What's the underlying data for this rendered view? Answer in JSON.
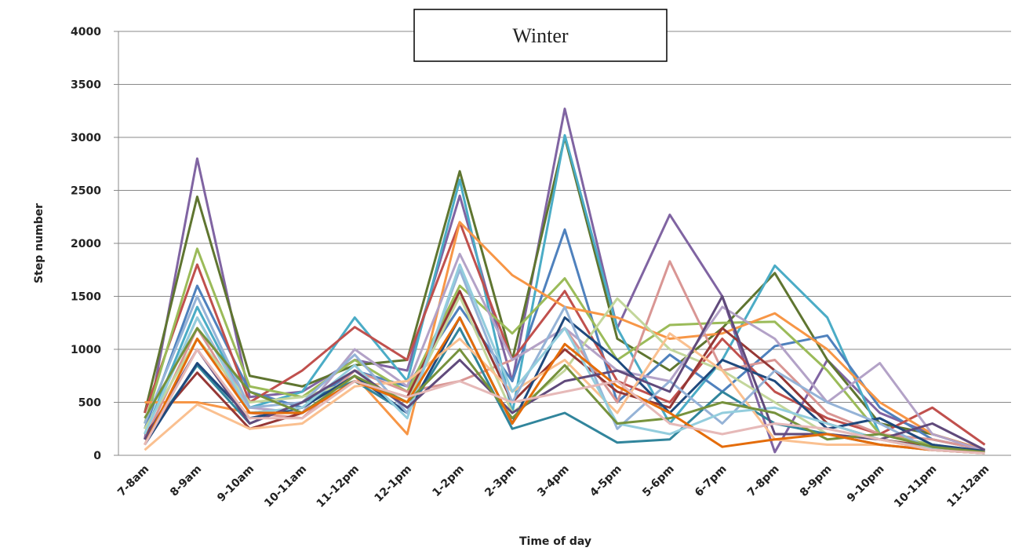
{
  "chart_data": {
    "type": "line",
    "title": "Winter",
    "x_label": "Time of day",
    "y_label": "Step number",
    "categories": [
      "7-8am",
      "8-9am",
      "9-10am",
      "10-11am",
      "11-12pm",
      "12-1pm",
      "1-2pm",
      "2-3pm",
      "3-4pm",
      "4-5pm",
      "5-6pm",
      "6-7pm",
      "7-8pm",
      "8-9pm",
      "9-10pm",
      "10-11pm",
      "11-12am"
    ],
    "ylim": [
      0,
      4000
    ],
    "yticks": [
      0,
      500,
      1000,
      1500,
      2000,
      2500,
      3000,
      3500,
      4000
    ],
    "grid": true,
    "series": [
      {
        "color": "#8064a2",
        "values": [
          150,
          2800,
          550,
          600,
          900,
          800,
          2450,
          700,
          3270,
          1200,
          2270,
          1500,
          30,
          900,
          400,
          200,
          50
        ]
      },
      {
        "color": "#5f7530",
        "values": [
          400,
          2440,
          750,
          650,
          850,
          900,
          2680,
          900,
          3000,
          1100,
          800,
          1200,
          1720,
          900,
          300,
          200,
          50
        ]
      },
      {
        "color": "#4bacc6",
        "values": [
          200,
          1400,
          450,
          600,
          1300,
          700,
          2600,
          400,
          3020,
          1200,
          300,
          900,
          1790,
          1300,
          200,
          100,
          30
        ]
      },
      {
        "color": "#4f81bd",
        "values": [
          250,
          1600,
          600,
          450,
          800,
          650,
          1400,
          700,
          2130,
          500,
          950,
          600,
          1030,
          1130,
          450,
          150,
          50
        ]
      },
      {
        "color": "#c0504d",
        "values": [
          400,
          1800,
          500,
          800,
          1210,
          900,
          2200,
          900,
          1550,
          700,
          500,
          1100,
          600,
          350,
          200,
          450,
          100
        ]
      },
      {
        "color": "#9bbb59",
        "values": [
          300,
          1950,
          650,
          550,
          900,
          600,
          1600,
          1150,
          1670,
          900,
          1230,
          1250,
          1260,
          800,
          200,
          100,
          30
        ]
      },
      {
        "color": "#f79646",
        "values": [
          500,
          500,
          400,
          450,
          750,
          200,
          2200,
          1700,
          1400,
          1300,
          1100,
          1150,
          1340,
          1000,
          500,
          200,
          50
        ]
      },
      {
        "color": "#d99694",
        "values": [
          150,
          1200,
          400,
          350,
          800,
          600,
          700,
          900,
          1200,
          500,
          1830,
          800,
          900,
          400,
          200,
          150,
          50
        ]
      },
      {
        "color": "#b3a2c7",
        "values": [
          200,
          1300,
          450,
          400,
          1000,
          650,
          1900,
          900,
          1200,
          800,
          700,
          1400,
          1100,
          500,
          870,
          200,
          40
        ]
      },
      {
        "color": "#c3d69b",
        "values": [
          250,
          1100,
          500,
          550,
          700,
          500,
          1500,
          400,
          800,
          1480,
          1000,
          800,
          500,
          200,
          150,
          50,
          20
        ]
      },
      {
        "color": "#31859c",
        "values": [
          150,
          850,
          300,
          500,
          700,
          400,
          1200,
          250,
          400,
          120,
          150,
          600,
          300,
          200,
          100,
          50,
          20
        ]
      },
      {
        "color": "#953735",
        "values": [
          200,
          780,
          250,
          400,
          700,
          550,
          1550,
          500,
          1000,
          600,
          450,
          1200,
          800,
          300,
          150,
          80,
          30
        ]
      },
      {
        "color": "#1f497d",
        "values": [
          100,
          870,
          350,
          450,
          750,
          400,
          1300,
          300,
          1300,
          900,
          400,
          900,
          700,
          250,
          350,
          100,
          40
        ]
      },
      {
        "color": "#fac090",
        "values": [
          50,
          480,
          250,
          300,
          650,
          700,
          1100,
          600,
          900,
          400,
          1150,
          800,
          150,
          100,
          100,
          50,
          20
        ]
      },
      {
        "color": "#95b3d7",
        "values": [
          300,
          1500,
          450,
          500,
          950,
          400,
          1750,
          500,
          1400,
          250,
          700,
          300,
          800,
          500,
          300,
          50,
          20
        ]
      },
      {
        "color": "#93cddd",
        "values": [
          200,
          1300,
          400,
          450,
          850,
          350,
          1800,
          600,
          1200,
          300,
          200,
          400,
          450,
          300,
          150,
          60,
          20
        ]
      },
      {
        "color": "#604a7b",
        "values": [
          150,
          1000,
          300,
          500,
          800,
          450,
          900,
          400,
          700,
          800,
          600,
          1500,
          200,
          200,
          150,
          300,
          50
        ]
      },
      {
        "color": "#76923c",
        "values": [
          350,
          1200,
          600,
          400,
          750,
          500,
          1000,
          350,
          850,
          300,
          350,
          500,
          400,
          150,
          200,
          80,
          30
        ]
      },
      {
        "color": "#e46c0a",
        "values": [
          100,
          1100,
          400,
          400,
          700,
          500,
          1300,
          300,
          1050,
          650,
          400,
          80,
          150,
          200,
          100,
          50,
          20
        ]
      },
      {
        "color": "#e6b9b8",
        "values": [
          100,
          1000,
          350,
          350,
          700,
          550,
          700,
          500,
          600,
          700,
          300,
          200,
          300,
          250,
          150,
          50,
          20
        ]
      }
    ]
  }
}
